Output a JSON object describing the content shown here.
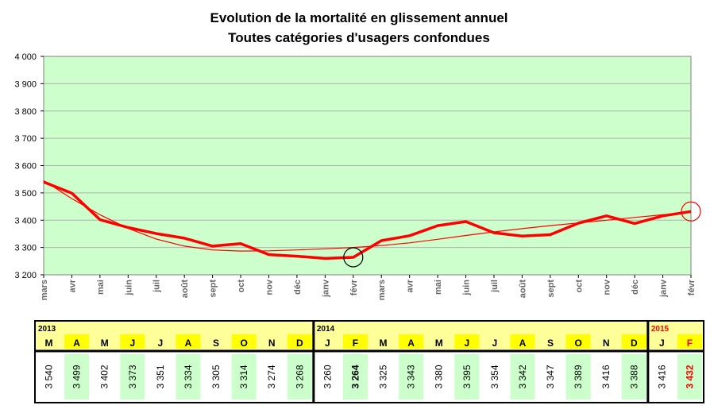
{
  "chart_data": {
    "type": "line",
    "title": "Evolution de la mortalité en glissement annuel",
    "subtitle": "Toutes catégories d'usagers confondues",
    "xlabel": "",
    "ylabel": "",
    "ylim": [
      3200,
      4000
    ],
    "yticks": [
      "3 200",
      "3 300",
      "3 400",
      "3 500",
      "3 600",
      "3 700",
      "3 800",
      "3 900",
      "4 000"
    ],
    "grid": true,
    "legend": "none",
    "colors": {
      "plot_bg": "#ccffcc",
      "line": "#ff0000",
      "trend": "#ff0000",
      "grid": "#b0b0b0",
      "yellow": "#ffff99",
      "green": "#ccffcc"
    },
    "categories": [
      "mars",
      "avr",
      "mai",
      "juin",
      "juil",
      "août",
      "sept",
      "oct",
      "nov",
      "déc",
      "janv",
      "févr",
      "mars",
      "avr",
      "mai",
      "juin",
      "juil",
      "août",
      "sept",
      "oct",
      "nov",
      "déc",
      "janv",
      "févr"
    ],
    "series": [
      {
        "values": [
          3540,
          3499,
          3402,
          3373,
          3351,
          3334,
          3305,
          3314,
          3274,
          3268,
          3260,
          3264,
          3325,
          3343,
          3380,
          3395,
          3354,
          3342,
          3347,
          3389,
          3416,
          3388,
          3416,
          3432
        ]
      }
    ],
    "trend": {
      "values": [
        3545,
        3479,
        3420,
        3370,
        3331,
        3305,
        3291,
        3287,
        3288,
        3291,
        3295,
        3300,
        3307,
        3317,
        3330,
        3344,
        3357,
        3369,
        3380,
        3390,
        3400,
        3410,
        3420,
        3428
      ]
    },
    "highlight_circles": [
      {
        "index": 11,
        "color": "#000000"
      },
      {
        "index": 23,
        "color": "#ff0000"
      }
    ],
    "table": {
      "years": [
        {
          "label": "2013",
          "color": "#000000",
          "months": [
            "M",
            "A",
            "M",
            "J",
            "J",
            "A",
            "S",
            "O",
            "N",
            "D"
          ],
          "values": [
            "3 540",
            "3 499",
            "3 402",
            "3 373",
            "3 351",
            "3 334",
            "3 305",
            "3 314",
            "3 274",
            "3 268"
          ]
        },
        {
          "label": "2014",
          "color": "#000000",
          "months": [
            "J",
            "F",
            "M",
            "A",
            "M",
            "J",
            "J",
            "A",
            "S",
            "O",
            "N",
            "D"
          ],
          "values": [
            "3 260",
            "3 264",
            "3 325",
            "3 343",
            "3 380",
            "3 395",
            "3 354",
            "3 342",
            "3 347",
            "3 389",
            "3 416",
            "3 388"
          ]
        },
        {
          "label": "2015",
          "color": "#ff0000",
          "months": [
            "J",
            "F"
          ],
          "values": [
            "3 416",
            "3 432"
          ]
        }
      ],
      "highlight": {
        "yellow_letter_index_2013": [
          1,
          3,
          5,
          7,
          9
        ],
        "emph": [
          {
            "year": 1,
            "index": 1,
            "color": "#000000"
          },
          {
            "year": 2,
            "index": 1,
            "color": "#ff0000"
          }
        ]
      }
    }
  }
}
